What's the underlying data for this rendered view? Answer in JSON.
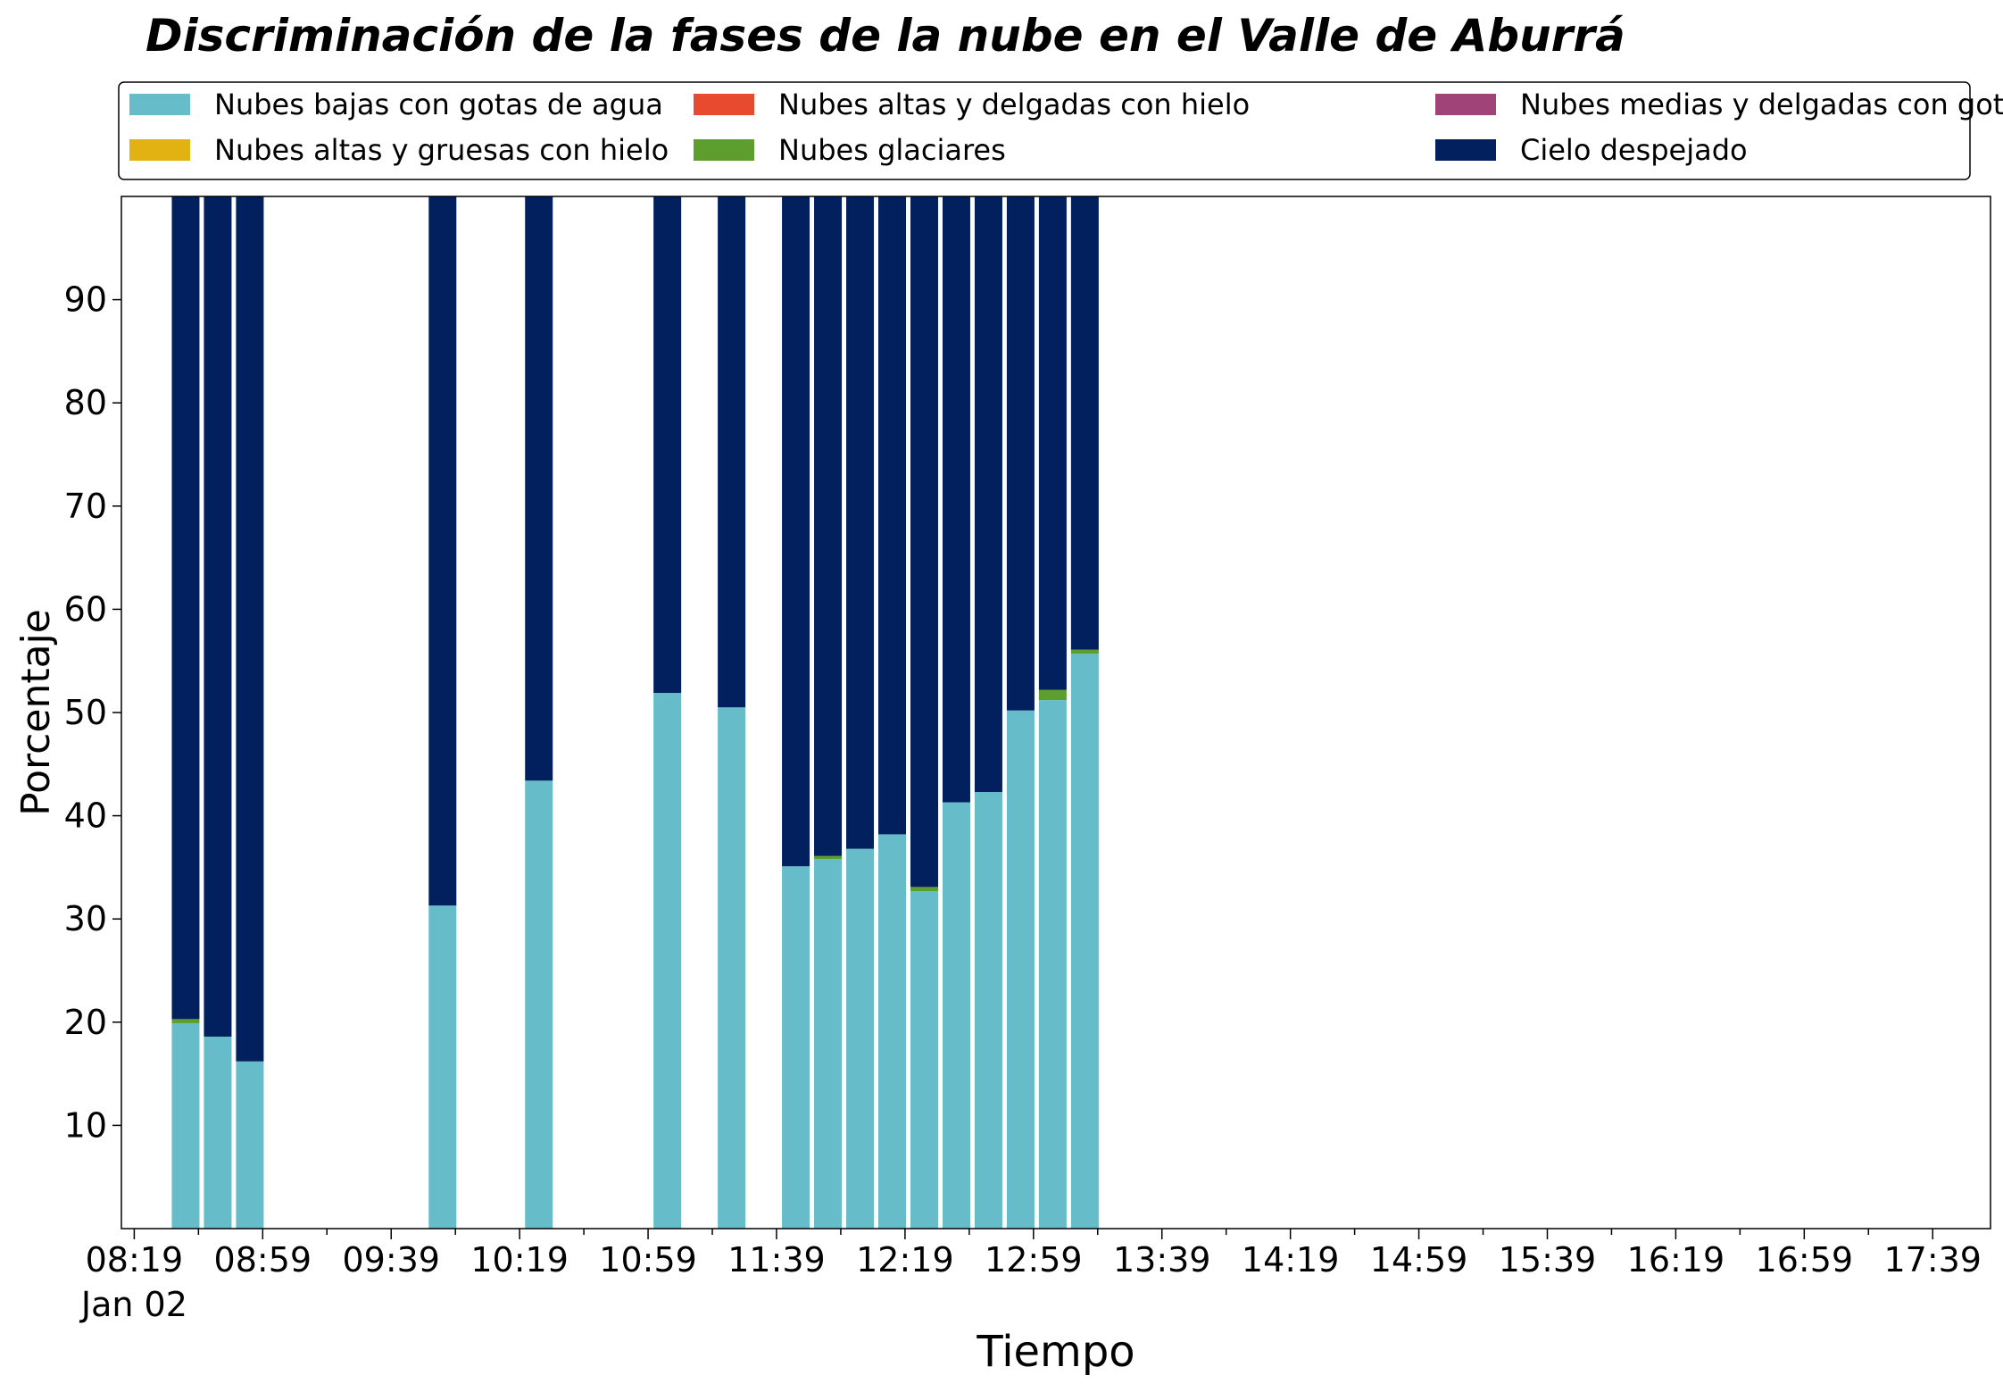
{
  "chart_data": {
    "type": "bar",
    "stacked": true,
    "title": "Discriminación de la fases de la nube en el Valle de Aburrá",
    "xlabel": "Tiempo",
    "ylabel": "Porcentaje",
    "ylim": [
      0,
      100
    ],
    "yticks": [
      10,
      20,
      30,
      40,
      50,
      60,
      70,
      80,
      90
    ],
    "xlim": [
      "2024-01-02T08:15",
      "2024-01-02T17:57"
    ],
    "xtick_labels": [
      "08:19",
      "08:59",
      "09:39",
      "10:19",
      "10:59",
      "11:39",
      "12:19",
      "12:59",
      "13:39",
      "14:19",
      "14:59",
      "15:39",
      "16:19",
      "16:59",
      "17:39"
    ],
    "xtick_date_label": "Jan 02",
    "grid": false,
    "legend_position": "top",
    "legend": [
      {
        "name": "Nubes bajas con gotas de agua",
        "color": "#66bdc9"
      },
      {
        "name": "Nubes altas y gruesas con hielo",
        "color": "#e2b212"
      },
      {
        "name": "Nubes altas y delgadas con hielo",
        "color": "#e84a2f"
      },
      {
        "name": "Nubes glaciares",
        "color": "#5e9e2e"
      },
      {
        "name": "Nubes medias y delgadas con gotas de agua",
        "color": "#a04378"
      },
      {
        "name": "Cielo despejado",
        "color": "#021f5e"
      }
    ],
    "x": [
      "08:35",
      "08:45",
      "08:55",
      "09:55",
      "10:25",
      "11:05",
      "11:25",
      "11:45",
      "11:55",
      "12:05",
      "12:15",
      "12:25",
      "12:35",
      "12:45",
      "12:55",
      "13:05",
      "13:15"
    ],
    "series": [
      {
        "name": "Nubes bajas con gotas de agua",
        "values": [
          19.9,
          18.6,
          16.2,
          31.3,
          43.4,
          51.9,
          50.5,
          35.1,
          35.8,
          36.8,
          38.2,
          32.7,
          41.3,
          42.3,
          50.2,
          51.2,
          55.7
        ]
      },
      {
        "name": "Nubes glaciares",
        "values": [
          0.4,
          0.0,
          0.0,
          0.0,
          0.0,
          0.0,
          0.0,
          0.0,
          0.3,
          0.0,
          0.0,
          0.4,
          0.0,
          0.0,
          0.0,
          1.0,
          0.4
        ]
      },
      {
        "name": "Nubes altas y gruesas con hielo",
        "values": [
          0,
          0,
          0,
          0,
          0,
          0,
          0,
          0,
          0,
          0,
          0,
          0,
          0,
          0,
          0,
          0,
          0
        ]
      },
      {
        "name": "Nubes medias y delgadas con gotas de agua",
        "values": [
          0,
          0,
          0,
          0,
          0,
          0,
          0,
          0,
          0,
          0,
          0,
          0,
          0,
          0,
          0,
          0,
          0
        ]
      },
      {
        "name": "Nubes altas y delgadas con hielo",
        "values": [
          0,
          0,
          0,
          0,
          0,
          0,
          0,
          0,
          0,
          0,
          0,
          0,
          0,
          0,
          0,
          0,
          0
        ]
      },
      {
        "name": "Cielo despejado",
        "values": [
          79.7,
          81.4,
          83.8,
          68.7,
          56.6,
          48.1,
          49.5,
          64.9,
          63.9,
          63.2,
          61.8,
          66.9,
          58.7,
          57.7,
          49.8,
          47.8,
          43.9
        ]
      }
    ]
  }
}
